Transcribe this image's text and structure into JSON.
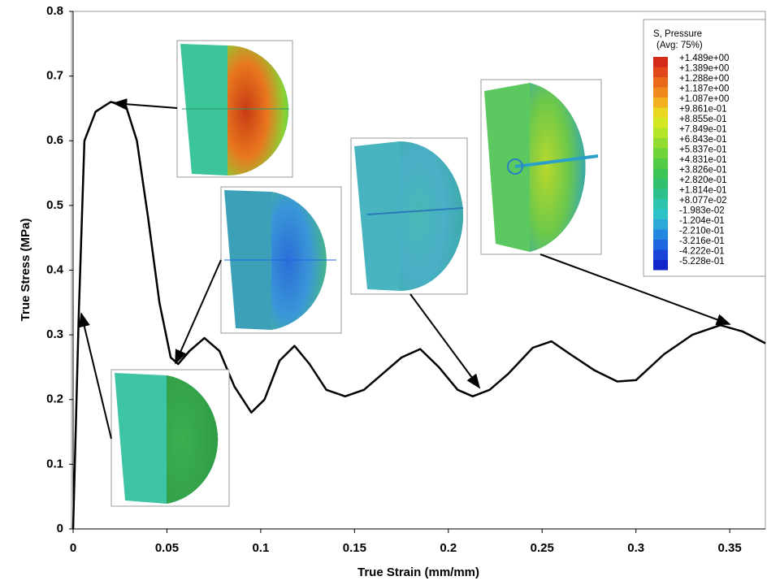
{
  "chart_data": {
    "type": "line",
    "xlabel": "True Strain (mm/mm)",
    "ylabel": "True Stress (MPa)",
    "x": [
      0,
      0.003,
      0.006,
      0.012,
      0.02,
      0.028,
      0.034,
      0.04,
      0.046,
      0.052,
      0.056,
      0.062,
      0.07,
      0.078,
      0.086,
      0.095,
      0.102,
      0.11,
      0.118,
      0.126,
      0.135,
      0.145,
      0.155,
      0.165,
      0.175,
      0.185,
      0.195,
      0.205,
      0.213,
      0.222,
      0.232,
      0.245,
      0.255,
      0.265,
      0.278,
      0.29,
      0.3,
      0.315,
      0.33,
      0.345,
      0.357,
      0.369
    ],
    "series": [
      {
        "color": "#000000",
        "values": [
          0,
          0.33,
          0.6,
          0.645,
          0.66,
          0.655,
          0.6,
          0.48,
          0.35,
          0.265,
          0.255,
          0.275,
          0.295,
          0.275,
          0.22,
          0.18,
          0.2,
          0.26,
          0.283,
          0.255,
          0.215,
          0.205,
          0.215,
          0.24,
          0.265,
          0.278,
          0.25,
          0.215,
          0.205,
          0.215,
          0.24,
          0.28,
          0.29,
          0.27,
          0.245,
          0.228,
          0.23,
          0.27,
          0.3,
          0.315,
          0.305,
          0.287
        ]
      }
    ],
    "xlim": [
      0,
      0.369
    ],
    "ylim": [
      0,
      0.8
    ],
    "xticks": [
      0,
      0.05,
      0.1,
      0.15,
      0.2,
      0.25,
      0.3,
      0.35
    ],
    "yticks": [
      0,
      0.1,
      0.2,
      0.3,
      0.4,
      0.5,
      0.6,
      0.7,
      0.8
    ],
    "legend": {
      "title": "S, Pressure",
      "subtitle": "(Avg: 75%)",
      "labels": [
        "+1.489e+00",
        "+1.389e+00",
        "+1.288e+00",
        "+1.187e+00",
        "+1.087e+00",
        "+9.861e-01",
        "+8.855e-01",
        "+7.849e-01",
        "+6.843e-01",
        "+5.837e-01",
        "+4.831e-01",
        "+3.826e-01",
        "+2.820e-01",
        "+1.814e-01",
        "+8.077e-02",
        "-1.983e-02",
        "-1.204e-01",
        "-2.210e-01",
        "-3.216e-01",
        "-4.222e-01",
        "-5.228e-01"
      ],
      "colors": [
        "#d42a1a",
        "#e0481a",
        "#ea6a1c",
        "#f08a1c",
        "#f2b01e",
        "#e8d620",
        "#d2e622",
        "#b4e428",
        "#92dc30",
        "#6fd43a",
        "#52cc44",
        "#3cc456",
        "#30c06e",
        "#2cc08c",
        "#2cc4ac",
        "#2cc2c8",
        "#2aa8d8",
        "#2488e0",
        "#1e66e0",
        "#1844d8",
        "#1226cc"
      ]
    }
  }
}
